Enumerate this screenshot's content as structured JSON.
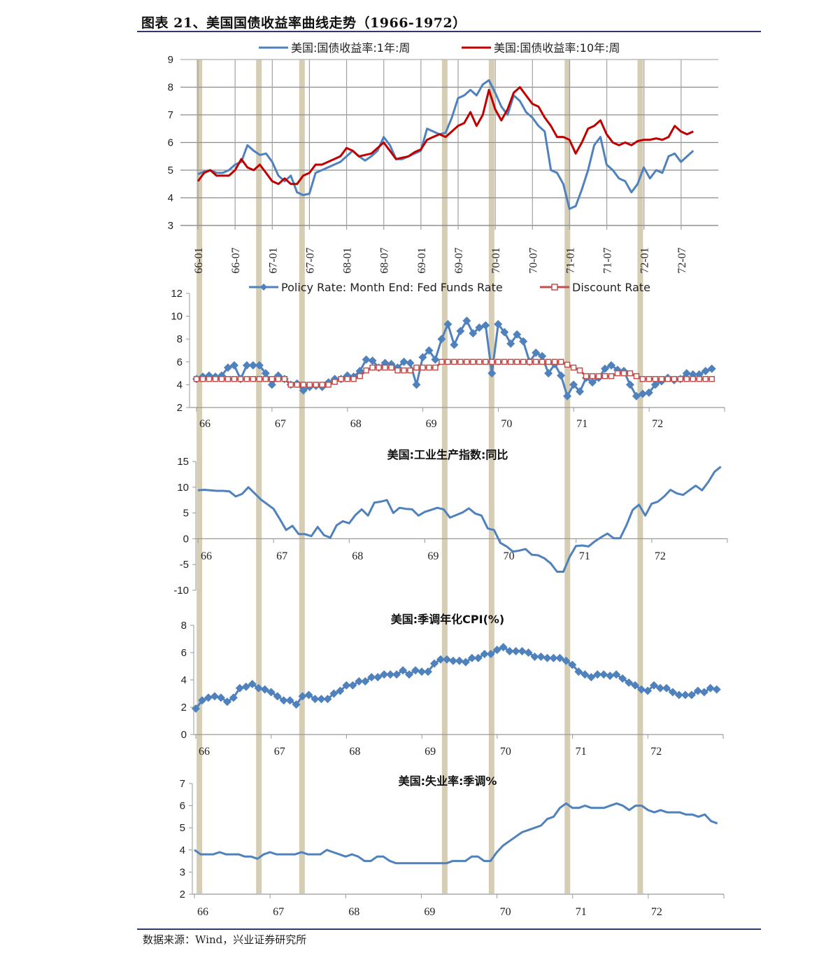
{
  "header": {
    "title": "图表 21、美国国债收益率曲线走势（1966-1972）"
  },
  "footer": {
    "source": "数据来源：Wind，兴业证券研究所"
  },
  "colors": {
    "blue": "#4f81bd",
    "red": "#c00000",
    "discount_red": "#c0504d",
    "band": "#d6ceb4",
    "grid": "#8c8c8c",
    "rule": "#2f3a6b"
  },
  "bands_x_years": [
    1966.02,
    1966.82,
    1967.4,
    1969.32,
    1969.95,
    1970.97,
    1971.95
  ],
  "chart_data": [
    {
      "type": "line",
      "title": "",
      "xlabel": "",
      "ylabel": "",
      "ylim": [
        3,
        9
      ],
      "yticks": [
        3,
        4,
        5,
        6,
        7,
        8,
        9
      ],
      "xticks": [
        "66-01",
        "66-07",
        "67-01",
        "67-07",
        "68-01",
        "68-07",
        "69-01",
        "69-07",
        "70-01",
        "70-07",
        "71-01",
        "71-07",
        "72-01",
        "72-07"
      ],
      "grid": true,
      "legend_position": "top",
      "x_start": 1966.0,
      "x_step": 0.0833,
      "series": [
        {
          "name": "美国:国债收益率:1年:周",
          "color": "#4f81bd",
          "values": [
            4.85,
            4.95,
            5.0,
            4.9,
            4.9,
            5.0,
            5.2,
            5.3,
            5.9,
            5.7,
            5.55,
            5.6,
            5.3,
            4.8,
            4.6,
            4.8,
            4.2,
            4.1,
            4.15,
            4.9,
            5.0,
            5.1,
            5.2,
            5.3,
            5.5,
            5.7,
            5.5,
            5.35,
            5.5,
            5.7,
            6.2,
            5.9,
            5.4,
            5.4,
            5.5,
            5.6,
            5.7,
            6.5,
            6.4,
            6.3,
            6.35,
            6.9,
            7.6,
            7.7,
            7.9,
            7.7,
            8.1,
            8.25,
            7.8,
            7.3,
            7.0,
            7.7,
            7.5,
            7.1,
            6.9,
            6.6,
            6.4,
            5.0,
            4.9,
            4.5,
            3.6,
            3.7,
            4.3,
            5.0,
            5.9,
            6.2,
            5.2,
            5.0,
            4.7,
            4.6,
            4.2,
            4.5,
            5.1,
            4.7,
            5.0,
            4.9,
            5.5,
            5.6,
            5.3,
            5.5,
            5.7
          ]
        },
        {
          "name": "美国:国债收益率:10年:周",
          "color": "#c00000",
          "values": [
            4.6,
            4.9,
            5.0,
            4.8,
            4.8,
            4.8,
            5.0,
            5.4,
            5.1,
            5.0,
            5.2,
            4.9,
            4.6,
            4.5,
            4.7,
            4.5,
            4.5,
            4.8,
            4.9,
            5.2,
            5.2,
            5.3,
            5.4,
            5.5,
            5.8,
            5.7,
            5.5,
            5.55,
            5.6,
            5.8,
            6.0,
            5.7,
            5.4,
            5.45,
            5.5,
            5.65,
            5.75,
            6.1,
            6.2,
            6.3,
            6.2,
            6.4,
            6.6,
            6.7,
            7.1,
            6.6,
            7.0,
            7.9,
            7.2,
            6.8,
            7.2,
            7.8,
            8.0,
            7.7,
            7.4,
            7.3,
            6.9,
            6.6,
            6.2,
            6.2,
            6.1,
            5.6,
            6.0,
            6.5,
            6.6,
            6.8,
            6.3,
            6.0,
            5.9,
            6.0,
            5.9,
            6.05,
            6.1,
            6.1,
            6.15,
            6.1,
            6.2,
            6.6,
            6.4,
            6.3,
            6.4
          ]
        }
      ]
    },
    {
      "type": "line",
      "title": "",
      "ylim": [
        2,
        12
      ],
      "yticks": [
        2,
        4,
        6,
        8,
        10,
        12
      ],
      "xticks": [
        "66",
        "67",
        "68",
        "69",
        "70",
        "71",
        "72"
      ],
      "legend_position": "top",
      "x_start": 1966.0,
      "x_step": 0.0833,
      "series": [
        {
          "name": "Policy Rate: Month End: Fed Funds Rate",
          "color": "#4f81bd",
          "marker": "diamond",
          "values": [
            4.5,
            4.7,
            4.8,
            4.7,
            4.8,
            5.5,
            5.7,
            4.5,
            5.7,
            5.7,
            5.7,
            5.0,
            4.0,
            4.8,
            4.5,
            4.0,
            4.1,
            3.5,
            3.8,
            3.9,
            3.8,
            4.2,
            4.5,
            4.5,
            4.8,
            4.7,
            5.2,
            6.2,
            6.1,
            5.5,
            5.9,
            5.8,
            5.5,
            6.0,
            5.9,
            4.0,
            6.4,
            7.0,
            6.2,
            8.0,
            9.3,
            7.5,
            8.7,
            9.6,
            8.5,
            9.0,
            9.2,
            5.0,
            9.3,
            8.6,
            7.6,
            8.4,
            7.8,
            6.0,
            6.8,
            6.5,
            5.0,
            5.8,
            4.8,
            3.0,
            4.0,
            3.4,
            4.6,
            4.2,
            4.6,
            5.4,
            5.7,
            5.3,
            5.2,
            4.0,
            3.0,
            3.2,
            3.3,
            4.0,
            4.3,
            4.6,
            4.4,
            4.5,
            5.0,
            4.9,
            4.9,
            5.2,
            5.4
          ]
        },
        {
          "name": "Discount Rate",
          "color": "#c0504d",
          "marker": "square-open",
          "values": [
            4.5,
            4.5,
            4.5,
            4.5,
            4.5,
            4.5,
            4.5,
            4.5,
            4.5,
            4.5,
            4.5,
            4.5,
            4.5,
            4.5,
            4.5,
            4.0,
            4.0,
            4.0,
            4.0,
            4.0,
            4.0,
            4.0,
            4.25,
            4.5,
            4.5,
            4.5,
            4.75,
            5.25,
            5.5,
            5.5,
            5.5,
            5.5,
            5.25,
            5.25,
            5.25,
            5.5,
            5.5,
            5.5,
            5.5,
            6.0,
            6.0,
            6.0,
            6.0,
            6.0,
            6.0,
            6.0,
            6.0,
            6.0,
            6.0,
            6.0,
            6.0,
            6.0,
            6.0,
            6.0,
            6.0,
            6.0,
            6.0,
            6.0,
            6.0,
            5.75,
            5.5,
            5.25,
            4.75,
            4.75,
            4.75,
            4.75,
            4.75,
            5.0,
            5.0,
            5.0,
            4.75,
            4.5,
            4.5,
            4.5,
            4.5,
            4.5,
            4.5,
            4.5,
            4.5,
            4.5,
            4.5,
            4.5,
            4.5
          ]
        }
      ]
    },
    {
      "type": "line",
      "title": "美国:工业生产指数:同比",
      "ylim": [
        -10,
        15
      ],
      "yticks": [
        -10,
        -5,
        0,
        5,
        10,
        15
      ],
      "xticks": [
        "66",
        "67",
        "68",
        "69",
        "70",
        "71",
        "72"
      ],
      "x_start": 1966.0,
      "x_step": 0.0833,
      "series": [
        {
          "name": "美国:工业生产指数:同比",
          "color": "#4f81bd",
          "values": [
            9.4,
            9.5,
            9.4,
            9.3,
            9.3,
            9.2,
            8.2,
            8.7,
            10.0,
            8.8,
            7.6,
            6.7,
            5.8,
            3.8,
            1.7,
            2.5,
            0.9,
            0.9,
            0.5,
            2.3,
            0.7,
            0.2,
            2.6,
            3.4,
            3.0,
            4.6,
            5.7,
            4.5,
            7.0,
            7.2,
            7.5,
            5.0,
            6.0,
            5.8,
            5.7,
            4.5,
            5.2,
            5.6,
            6.0,
            5.7,
            4.1,
            4.6,
            5.1,
            5.9,
            4.9,
            4.5,
            2.0,
            1.7,
            -0.8,
            -1.5,
            -2.5,
            -2.3,
            -2.0,
            -3.1,
            -3.2,
            -3.8,
            -4.8,
            -6.4,
            -6.4,
            -3.5,
            -1.4,
            -1.3,
            -1.5,
            -0.5,
            0.3,
            1.0,
            0.1,
            0.1,
            2.6,
            5.6,
            6.6,
            4.5,
            6.8,
            7.2,
            8.2,
            9.5,
            8.8,
            8.5,
            9.4,
            10.3,
            9.4,
            11.0,
            13.0,
            14.0
          ]
        }
      ]
    },
    {
      "type": "line",
      "title": "美国:季调年化CPI(%)",
      "ylim": [
        0,
        8
      ],
      "yticks": [
        0,
        2,
        4,
        6,
        8
      ],
      "xticks": [
        "66",
        "67",
        "68",
        "69",
        "70",
        "71",
        "72"
      ],
      "x_start": 1966.0,
      "x_step": 0.0833,
      "series": [
        {
          "name": "美国:季调年化CPI(%)",
          "color": "#4f81bd",
          "marker": "diamond",
          "values": [
            1.9,
            2.5,
            2.7,
            2.8,
            2.7,
            2.4,
            2.7,
            3.4,
            3.5,
            3.7,
            3.4,
            3.3,
            3.1,
            2.8,
            2.5,
            2.5,
            2.2,
            2.8,
            2.9,
            2.6,
            2.6,
            2.6,
            3.0,
            3.2,
            3.6,
            3.6,
            3.9,
            3.9,
            4.2,
            4.2,
            4.4,
            4.4,
            4.4,
            4.7,
            4.4,
            4.7,
            4.6,
            4.6,
            5.2,
            5.5,
            5.5,
            5.4,
            5.4,
            5.3,
            5.6,
            5.6,
            5.9,
            5.9,
            6.2,
            6.4,
            6.1,
            6.1,
            6.1,
            6.0,
            5.7,
            5.7,
            5.6,
            5.6,
            5.6,
            5.4,
            5.1,
            4.6,
            4.4,
            4.2,
            4.4,
            4.4,
            4.3,
            4.4,
            4.1,
            3.8,
            3.6,
            3.3,
            3.2,
            3.6,
            3.4,
            3.4,
            3.1,
            2.9,
            2.9,
            2.9,
            3.2,
            3.1,
            3.4,
            3.3
          ]
        }
      ]
    },
    {
      "type": "line",
      "title": "美国:失业率:季调%",
      "ylim": [
        2,
        7
      ],
      "yticks": [
        2,
        3,
        4,
        5,
        6,
        7
      ],
      "xticks": [
        "66",
        "67",
        "68",
        "69",
        "70",
        "71",
        "72"
      ],
      "x_start": 1966.0,
      "x_step": 0.0833,
      "series": [
        {
          "name": "美国:失业率:季调%",
          "color": "#4f81bd",
          "values": [
            4.0,
            3.8,
            3.8,
            3.8,
            3.9,
            3.8,
            3.8,
            3.8,
            3.7,
            3.7,
            3.6,
            3.8,
            3.9,
            3.8,
            3.8,
            3.8,
            3.8,
            3.9,
            3.8,
            3.8,
            3.8,
            4.0,
            3.9,
            3.8,
            3.7,
            3.8,
            3.7,
            3.5,
            3.5,
            3.7,
            3.7,
            3.5,
            3.4,
            3.4,
            3.4,
            3.4,
            3.4,
            3.4,
            3.4,
            3.4,
            3.4,
            3.5,
            3.5,
            3.5,
            3.7,
            3.7,
            3.5,
            3.5,
            3.9,
            4.2,
            4.4,
            4.6,
            4.8,
            4.9,
            5.0,
            5.1,
            5.4,
            5.5,
            5.9,
            6.1,
            5.9,
            5.9,
            6.0,
            5.9,
            5.9,
            5.9,
            6.0,
            6.1,
            6.0,
            5.8,
            6.0,
            6.0,
            5.8,
            5.7,
            5.8,
            5.7,
            5.7,
            5.7,
            5.6,
            5.6,
            5.5,
            5.6,
            5.3,
            5.2
          ]
        }
      ]
    }
  ]
}
